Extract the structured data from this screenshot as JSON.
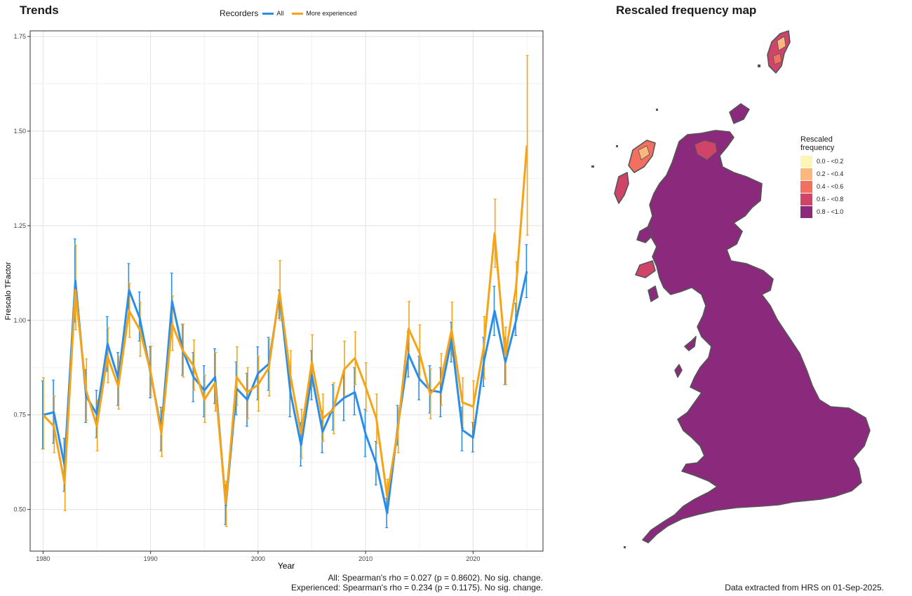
{
  "trends": {
    "title": "Trends",
    "legend": {
      "title": "Recorders",
      "items": [
        {
          "label": "All",
          "color": "#2a8ee8"
        },
        {
          "label": "More experienced",
          "color": "#f6a316"
        }
      ]
    },
    "footnote_all": "All: Spearman's rho = 0.027 (p = 0.8602). No sig. change.",
    "footnote_exp": "Experienced: Spearman's rho = 0.234 (p = 0.1175). No sig. change."
  },
  "map": {
    "title": "Rescaled frequency map",
    "legend_title_line1": "Rescaled",
    "legend_title_line2": "frequency",
    "bins": [
      {
        "label": "0.0 - <0.2",
        "color": "#fcf6b6"
      },
      {
        "label": "0.2 - <0.4",
        "color": "#fbb77d"
      },
      {
        "label": "0.4 - <0.6",
        "color": "#f37060"
      },
      {
        "label": "0.6 - <0.8",
        "color": "#d0446a"
      },
      {
        "label": "0.8 - <1.0",
        "color": "#8b2a7d"
      }
    ],
    "fill_color": "#8b2a7d",
    "outline_color": "#555555",
    "source_note": "Data extracted from HRS on 01-Sep-2025."
  },
  "chart_data": {
    "type": "line",
    "title": "",
    "xlabel": "Year",
    "ylabel": "Frescalo TFactor",
    "xlim": [
      1978.8,
      1930.0
    ],
    "ylim": [
      0.39,
      1.765
    ],
    "x_ticks": [
      1980,
      1990,
      2000,
      2010,
      2020
    ],
    "y_ticks": [
      0.5,
      0.75,
      1.0,
      1.25,
      1.5,
      1.75
    ],
    "y_tick_labels": [
      "0.50",
      "0.75",
      "1.00",
      "1.25",
      "1.50",
      "1.75"
    ],
    "grid": true,
    "legend_position": "top",
    "x": [
      1980,
      1981,
      1982,
      1983,
      1984,
      1985,
      1986,
      1987,
      1988,
      1989,
      1990,
      1991,
      1992,
      1993,
      1994,
      1995,
      1996,
      1997,
      1998,
      1999,
      2000,
      2001,
      2002,
      2003,
      2004,
      2005,
      2006,
      2007,
      2008,
      2009,
      2010,
      2011,
      2012,
      2013,
      2014,
      2015,
      2016,
      2017,
      2018,
      2019,
      2020,
      2021,
      2022,
      2023,
      2024,
      2025
    ],
    "series": [
      {
        "name": "All",
        "color": "#2a8ee8",
        "values": [
          0.75,
          0.757,
          0.617,
          1.105,
          0.8,
          0.752,
          0.938,
          0.845,
          1.08,
          1.005,
          0.86,
          0.71,
          1.05,
          0.92,
          0.85,
          0.815,
          0.85,
          0.51,
          0.82,
          0.79,
          0.86,
          0.885,
          1.07,
          0.81,
          0.67,
          0.855,
          0.705,
          0.77,
          0.795,
          0.81,
          0.7,
          0.62,
          0.49,
          0.72,
          0.91,
          0.845,
          0.815,
          0.81,
          0.95,
          0.71,
          0.69,
          0.89,
          1.025,
          0.89,
          1.0,
          1.13
        ],
        "lower": [
          0.66,
          0.675,
          0.548,
          0.995,
          0.73,
          0.69,
          0.865,
          0.775,
          1.01,
          0.945,
          0.795,
          0.655,
          0.975,
          0.855,
          0.785,
          0.745,
          0.78,
          0.46,
          0.75,
          0.72,
          0.79,
          0.815,
          1.005,
          0.745,
          0.615,
          0.79,
          0.65,
          0.71,
          0.735,
          0.75,
          0.64,
          0.565,
          0.452,
          0.67,
          0.85,
          0.79,
          0.755,
          0.745,
          0.89,
          0.655,
          0.652,
          0.825,
          0.96,
          0.83,
          0.96,
          1.06
        ],
        "upper": [
          0.84,
          0.842,
          0.688,
          1.215,
          0.87,
          0.815,
          1.01,
          0.915,
          1.15,
          1.075,
          0.93,
          0.77,
          1.125,
          0.99,
          0.915,
          0.88,
          0.925,
          0.565,
          0.89,
          0.86,
          0.93,
          0.955,
          1.08,
          0.88,
          0.73,
          0.92,
          0.76,
          0.83,
          0.86,
          0.875,
          0.765,
          0.68,
          0.53,
          0.775,
          0.97,
          0.905,
          0.88,
          0.875,
          0.995,
          0.77,
          0.73,
          0.955,
          1.09,
          0.955,
          1.045,
          1.2
        ]
      },
      {
        "name": "More experienced",
        "color": "#f6a316",
        "values": [
          0.75,
          0.72,
          0.57,
          1.08,
          0.815,
          0.72,
          0.905,
          0.825,
          1.025,
          0.975,
          0.865,
          0.7,
          0.99,
          0.92,
          0.88,
          0.79,
          0.835,
          0.515,
          0.85,
          0.81,
          0.83,
          0.875,
          1.075,
          0.855,
          0.7,
          0.89,
          0.74,
          0.765,
          0.87,
          0.9,
          0.825,
          0.74,
          0.535,
          0.71,
          0.978,
          0.915,
          0.805,
          0.84,
          0.975,
          0.783,
          0.772,
          0.93,
          1.23,
          0.905,
          1.09,
          1.462
        ],
        "lower": [
          0.66,
          0.65,
          0.497,
          0.975,
          0.735,
          0.655,
          0.835,
          0.765,
          0.955,
          0.905,
          0.8,
          0.64,
          0.92,
          0.85,
          0.815,
          0.73,
          0.76,
          0.455,
          0.775,
          0.74,
          0.76,
          0.8,
          1.0,
          0.79,
          0.635,
          0.825,
          0.68,
          0.7,
          0.8,
          0.83,
          0.76,
          0.675,
          0.492,
          0.65,
          0.905,
          0.845,
          0.74,
          0.775,
          0.905,
          0.715,
          0.712,
          0.845,
          1.14,
          0.83,
          1.02,
          1.225
        ],
        "upper": [
          0.848,
          0.8,
          0.645,
          1.198,
          0.898,
          0.79,
          0.98,
          0.905,
          1.098,
          1.048,
          0.932,
          0.765,
          1.065,
          0.99,
          0.948,
          0.855,
          0.915,
          0.575,
          0.93,
          0.875,
          0.905,
          0.95,
          1.158,
          0.92,
          0.765,
          0.962,
          0.805,
          0.835,
          0.945,
          0.97,
          0.888,
          0.805,
          0.58,
          0.77,
          1.05,
          0.988,
          0.872,
          0.912,
          1.048,
          0.848,
          0.84,
          1.01,
          1.32,
          0.982,
          1.155,
          1.7
        ]
      }
    ]
  }
}
